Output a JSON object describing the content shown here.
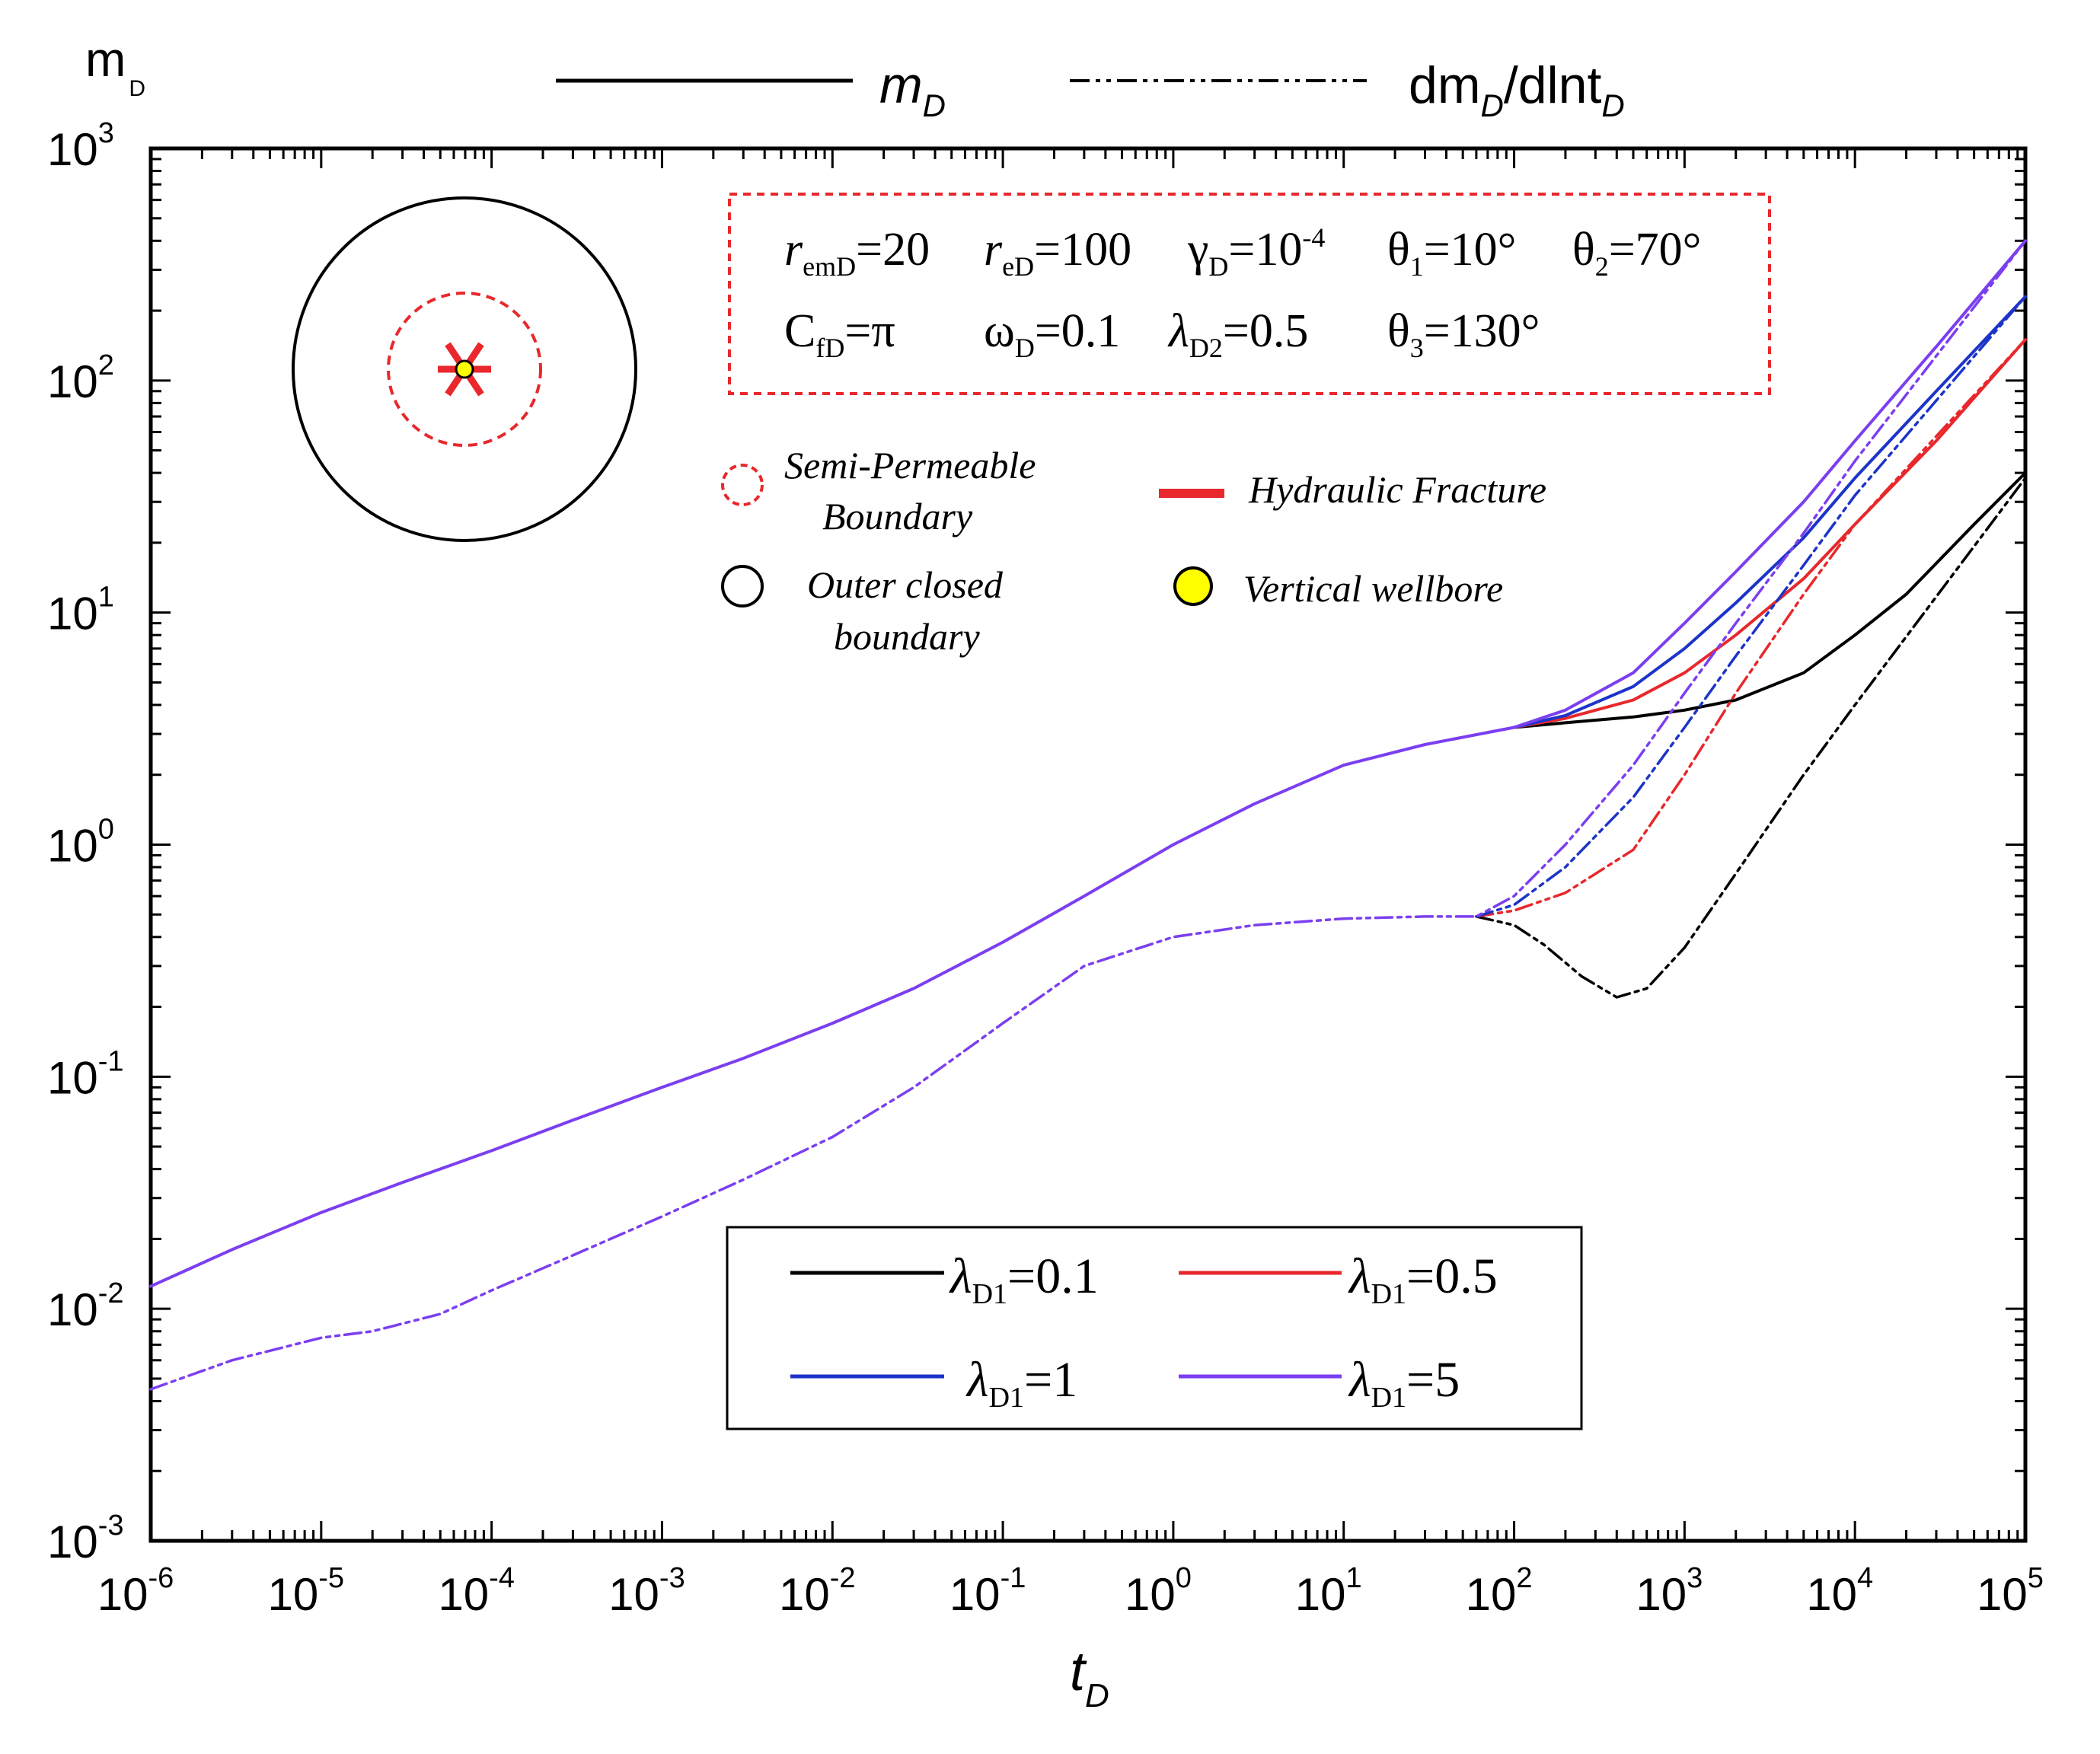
{
  "chart_data": {
    "type": "line",
    "xscale": "log",
    "yscale": "log",
    "xlim": [
      1e-06,
      100000
    ],
    "ylim": [
      0.001,
      1000
    ],
    "xlabel": {
      "main": "t",
      "sub": "D"
    },
    "ylabel": {
      "main": "m",
      "sub": "D"
    },
    "x_ticks": [
      {
        "base": "10",
        "exp": "-6"
      },
      {
        "base": "10",
        "exp": "-5"
      },
      {
        "base": "10",
        "exp": "-4"
      },
      {
        "base": "10",
        "exp": "-3"
      },
      {
        "base": "10",
        "exp": "-2"
      },
      {
        "base": "10",
        "exp": "-1"
      },
      {
        "base": "10",
        "exp": "0"
      },
      {
        "base": "10",
        "exp": "1"
      },
      {
        "base": "10",
        "exp": "2"
      },
      {
        "base": "10",
        "exp": "3"
      },
      {
        "base": "10",
        "exp": "4"
      },
      {
        "base": "10",
        "exp": "5"
      }
    ],
    "y_ticks": [
      {
        "base": "10",
        "exp": "-3"
      },
      {
        "base": "10",
        "exp": "-2"
      },
      {
        "base": "10",
        "exp": "-1"
      },
      {
        "base": "10",
        "exp": "0"
      },
      {
        "base": "10",
        "exp": "1"
      },
      {
        "base": "10",
        "exp": "2"
      },
      {
        "base": "10",
        "exp": "3"
      }
    ],
    "style_legend": [
      {
        "label": "m",
        "sub": "D",
        "suffix": "",
        "prefix": "",
        "dash": "solid"
      },
      {
        "label": "dm",
        "sub": "D",
        "suffix": "/dlnt",
        "suffix_sub": "D",
        "prefix": "",
        "dash": "dashdot"
      }
    ],
    "parameters": {
      "row1": [
        {
          "sym": "r",
          "sub": "emD",
          "val": "=20"
        },
        {
          "sym": "r",
          "sub": "eD",
          "val": "=100"
        },
        {
          "sym": "γ",
          "sub": "D",
          "val": "=10",
          "sup": "-4"
        },
        {
          "sym": "θ",
          "sub": "1",
          "val": "=10°"
        },
        {
          "sym": "θ",
          "sub": "2",
          "val": "=70°"
        }
      ],
      "row2": [
        {
          "sym": "C",
          "sub": "fD",
          "val": "=π"
        },
        {
          "sym": "ω",
          "sub": "D",
          "val": "=0.1"
        },
        {
          "sym": "λ",
          "sub": "D2",
          "val": "=0.5"
        },
        {
          "sym": "θ",
          "sub": "3",
          "val": "=130°"
        }
      ]
    },
    "schematic_legend": {
      "semi_permeable": [
        "Semi-Permeable",
        "Boundary"
      ],
      "hydraulic_fracture": "Hydraulic Fracture",
      "outer_closed": [
        "Outer closed",
        "boundary"
      ],
      "vertical_wellbore": "Vertical wellbore"
    },
    "colors": {
      "lam01": "#000000",
      "lam05": "#e8282c",
      "lam1": "#1c34c8",
      "lam5": "#7b3ff0",
      "schematic_red": "#e8282c",
      "wellbore": "#ffff00"
    },
    "series_legend": [
      {
        "label": "λ",
        "sub": "D1",
        "val": "=0.1",
        "color": "#000000"
      },
      {
        "label": "λ",
        "sub": "D1",
        "val": "=0.5",
        "color": "#e8282c"
      },
      {
        "label": "λ",
        "sub": "D1",
        "val": "=1",
        "color": "#1c34c8"
      },
      {
        "label": "λ",
        "sub": "D1",
        "val": "=5",
        "color": "#7b3ff0"
      }
    ],
    "series": [
      {
        "name": "m_D, λD1=5",
        "color": "#7b3ff0",
        "dash": "solid",
        "x": [
          1e-06,
          3e-06,
          1e-05,
          3e-05,
          0.0001,
          0.0003,
          0.001,
          0.003,
          0.01,
          0.03,
          0.1,
          0.3,
          1,
          3,
          10,
          30,
          100,
          200,
          500,
          1000,
          2000,
          5000,
          10000,
          30000,
          100000
        ],
        "y": [
          0.0125,
          0.018,
          0.026,
          0.035,
          0.048,
          0.065,
          0.09,
          0.12,
          0.17,
          0.24,
          0.38,
          0.6,
          1.0,
          1.5,
          2.2,
          2.7,
          3.2,
          3.8,
          5.5,
          9,
          15,
          30,
          55,
          140,
          400
        ]
      },
      {
        "name": "m_D, λD1=1",
        "color": "#1c34c8",
        "dash": "solid",
        "x": [
          100,
          200,
          500,
          1000,
          2000,
          5000,
          10000,
          30000,
          100000
        ],
        "y": [
          3.2,
          3.6,
          4.8,
          7,
          11,
          21,
          38,
          90,
          230
        ]
      },
      {
        "name": "m_D, λD1=0.5",
        "color": "#e8282c",
        "dash": "solid",
        "x": [
          100,
          200,
          500,
          1000,
          2000,
          5000,
          10000,
          30000,
          100000
        ],
        "y": [
          3.2,
          3.5,
          4.2,
          5.5,
          8,
          14,
          24,
          55,
          150
        ]
      },
      {
        "name": "m_D, λD1=0.1",
        "color": "#000000",
        "dash": "solid",
        "x": [
          100,
          200,
          500,
          1000,
          2000,
          5000,
          10000,
          20000,
          50000,
          100000
        ],
        "y": [
          3.2,
          3.35,
          3.55,
          3.8,
          4.2,
          5.5,
          8,
          12,
          24,
          40
        ]
      },
      {
        "name": "dm_D/dlnt_D, λD1=5",
        "color": "#7b3ff0",
        "dash": "dashdot",
        "x": [
          1e-06,
          3e-06,
          1e-05,
          2e-05,
          5e-05,
          0.0001,
          0.0003,
          0.001,
          0.003,
          0.01,
          0.03,
          0.1,
          0.3,
          1,
          3,
          10,
          30,
          60,
          100,
          200,
          500,
          1000,
          2000,
          5000,
          10000,
          100000
        ],
        "y": [
          0.0045,
          0.006,
          0.0075,
          0.008,
          0.0095,
          0.012,
          0.017,
          0.025,
          0.036,
          0.055,
          0.09,
          0.17,
          0.3,
          0.4,
          0.45,
          0.48,
          0.49,
          0.49,
          0.6,
          1.0,
          2.2,
          4.5,
          9,
          22,
          45,
          400
        ]
      },
      {
        "name": "dm_D/dlnt_D, λD1=1",
        "color": "#1c34c8",
        "dash": "dashdot",
        "x": [
          60,
          100,
          200,
          500,
          1000,
          2000,
          5000,
          10000,
          100000
        ],
        "y": [
          0.49,
          0.55,
          0.8,
          1.6,
          3.2,
          6.5,
          16,
          32,
          230
        ]
      },
      {
        "name": "dm_D/dlnt_D, λD1=0.5",
        "color": "#e8282c",
        "dash": "dashdot",
        "x": [
          60,
          100,
          200,
          500,
          1000,
          2000,
          5000,
          10000,
          100000
        ],
        "y": [
          0.49,
          0.52,
          0.62,
          0.95,
          2.0,
          4.5,
          12,
          24,
          150
        ]
      },
      {
        "name": "dm_D/dlnt_D, λD1=0.1",
        "color": "#000000",
        "dash": "dashdot",
        "x": [
          60,
          100,
          150,
          250,
          400,
          600,
          1000,
          2000,
          5000,
          10000,
          100000
        ],
        "y": [
          0.49,
          0.45,
          0.37,
          0.27,
          0.22,
          0.24,
          0.36,
          0.75,
          2.0,
          4.0,
          38
        ]
      }
    ]
  }
}
